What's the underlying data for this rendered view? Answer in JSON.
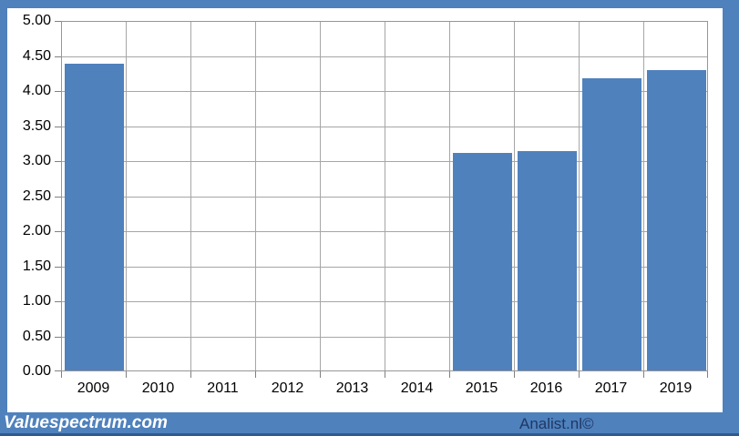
{
  "chart_data": {
    "type": "bar",
    "title": "",
    "xlabel": "",
    "ylabel": "",
    "categories": [
      "2009",
      "2010",
      "2011",
      "2012",
      "2013",
      "2014",
      "2015",
      "2016",
      "2017",
      "2019"
    ],
    "values": [
      4.38,
      null,
      null,
      null,
      null,
      null,
      3.1,
      3.13,
      4.17,
      4.28
    ],
    "ylim": [
      0,
      5
    ],
    "ytick_step": 0.5,
    "ytick_labels": [
      "5.00",
      "4.50",
      "4.00",
      "3.50",
      "3.00",
      "2.50",
      "2.00",
      "1.50",
      "1.00",
      "0.50",
      "0.00"
    ],
    "grid": "horizontal-and-vertical-major",
    "legend": "none",
    "bar_color": "#4f81bd"
  },
  "footer": {
    "brand": "Valuespectrum.com",
    "credit": "Analist.nl©"
  },
  "colors": {
    "frame": "#4f81bd",
    "footer_band": "#4f81bd",
    "footer_band_edge": "#2e5a8f",
    "bar": "#4f81bd",
    "gridline": "#a6a6a6",
    "plot_border": "#969696",
    "tick": "#808080",
    "axis_text": "#000000",
    "brand_text": "#ffffff",
    "credit_text": "#1f3864"
  }
}
